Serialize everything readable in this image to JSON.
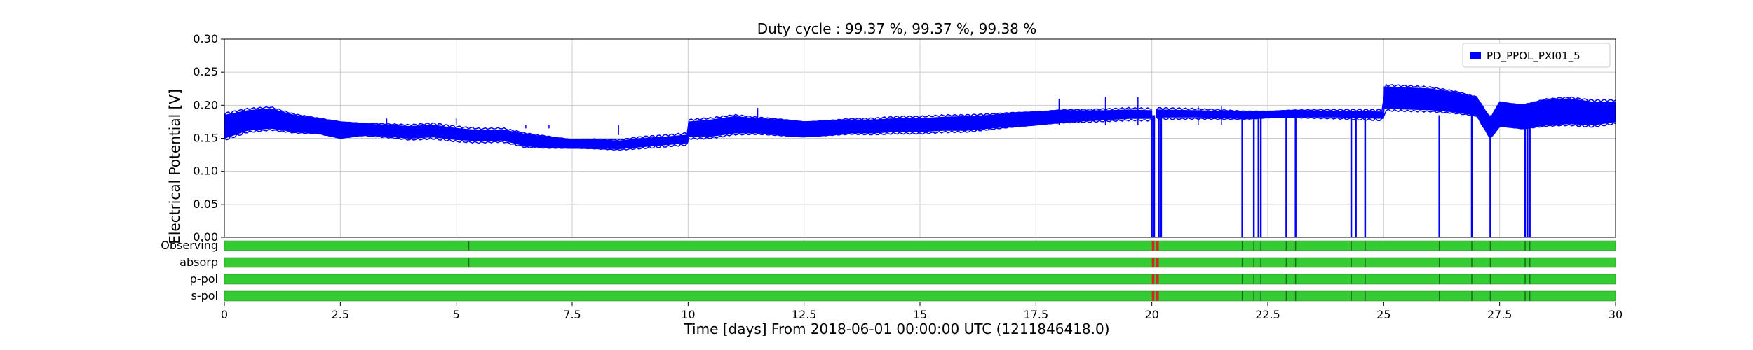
{
  "chart_data": {
    "type": "line",
    "title": "Duty cycle : 99.37 %, 99.37 %, 99.38 %",
    "xlabel": "Time [days] From 2018-06-01 00:00:00 UTC (1211846418.0)",
    "ylabel": "Electrical Potential [V]",
    "xlim": [
      0,
      30
    ],
    "ylim": [
      0,
      0.3
    ],
    "x_ticks": [
      0,
      2.5,
      5,
      7.5,
      10,
      12.5,
      15,
      17.5,
      20,
      22.5,
      25,
      27.5,
      30
    ],
    "x_tick_labels": [
      "0",
      "2.5",
      "5",
      "7.5",
      "10",
      "12.5",
      "15",
      "17.5",
      "20",
      "22.5",
      "25",
      "27.5",
      "30"
    ],
    "y_ticks": [
      0,
      0.05,
      0.1,
      0.15,
      0.2,
      0.25,
      0.3
    ],
    "y_tick_labels": [
      "0.00",
      "0.05",
      "0.10",
      "0.15",
      "0.20",
      "0.25",
      "0.30"
    ],
    "grid": true,
    "legend_position": "top-right",
    "colors": {
      "series": "#0000ff",
      "segment_active": "#33cc33",
      "segment_gap": "#d62728",
      "segment_tick": "#1a6b1a",
      "grid": "#cccccc"
    },
    "series": [
      {
        "name": "PD_PPOL_PXI01_5",
        "color": "#0000ff",
        "band_x": [
          0,
          0.5,
          1,
          1.5,
          2,
          2.5,
          3,
          3.5,
          4,
          4.5,
          5,
          5.5,
          6,
          6.5,
          7,
          7.5,
          8,
          8.5,
          9,
          9.5,
          9.99,
          10.01,
          10.5,
          11,
          11.5,
          12,
          12.5,
          13,
          13.5,
          14,
          14.5,
          15,
          15.5,
          16,
          16.5,
          17,
          17.5,
          18,
          18.5,
          19,
          19.5,
          20
        ],
        "band_low": [
          0.15,
          0.162,
          0.165,
          0.16,
          0.158,
          0.15,
          0.155,
          0.153,
          0.15,
          0.152,
          0.148,
          0.146,
          0.147,
          0.138,
          0.136,
          0.135,
          0.135,
          0.134,
          0.137,
          0.14,
          0.143,
          0.152,
          0.153,
          0.158,
          0.158,
          0.155,
          0.152,
          0.155,
          0.158,
          0.158,
          0.16,
          0.16,
          0.162,
          0.162,
          0.165,
          0.168,
          0.17,
          0.174,
          0.176,
          0.178,
          0.18,
          0.18
        ],
        "band_high": [
          0.185,
          0.192,
          0.195,
          0.185,
          0.18,
          0.175,
          0.172,
          0.17,
          0.168,
          0.17,
          0.165,
          0.162,
          0.163,
          0.156,
          0.152,
          0.148,
          0.148,
          0.146,
          0.15,
          0.152,
          0.155,
          0.175,
          0.178,
          0.183,
          0.18,
          0.178,
          0.175,
          0.176,
          0.178,
          0.178,
          0.18,
          0.18,
          0.182,
          0.183,
          0.185,
          0.188,
          0.19,
          0.192,
          0.192,
          0.192,
          0.193,
          0.192
        ],
        "band2_x": [
          20.1,
          21,
          22,
          23,
          24,
          25,
          25.01,
          26,
          26.5,
          27,
          27.3,
          27.5,
          28,
          28.5,
          29,
          29.5,
          30
        ],
        "band2_low": [
          0.182,
          0.182,
          0.18,
          0.182,
          0.182,
          0.18,
          0.195,
          0.193,
          0.19,
          0.185,
          0.15,
          0.168,
          0.165,
          0.17,
          0.172,
          0.17,
          0.175
        ],
        "band2_high": [
          0.193,
          0.192,
          0.19,
          0.192,
          0.191,
          0.19,
          0.228,
          0.225,
          0.22,
          0.212,
          0.18,
          0.205,
          0.2,
          0.208,
          0.21,
          0.205,
          0.205
        ],
        "dropouts": [
          20.0,
          20.05,
          20.15,
          20.2,
          21.95,
          22.2,
          22.3,
          22.35,
          22.9,
          23.1,
          24.3,
          24.4,
          24.6,
          26.2,
          26.9,
          27.3,
          28.05,
          28.1,
          28.15
        ],
        "spikes": [
          [
            3.5,
            0.18
          ],
          [
            5.0,
            0.18
          ],
          [
            6.5,
            0.165
          ],
          [
            7.0,
            0.165
          ],
          [
            8.5,
            0.155
          ],
          [
            11.5,
            0.196
          ],
          [
            18.0,
            0.21
          ],
          [
            19.0,
            0.212
          ],
          [
            19.7,
            0.212
          ],
          [
            21.0,
            0.198
          ],
          [
            21.5,
            0.198
          ]
        ]
      }
    ],
    "segments": {
      "rows": [
        {
          "label": "Observing",
          "ticks": [
            5.27,
            21.95,
            22.2,
            22.35,
            22.9,
            23.1,
            24.3,
            24.6,
            26.2,
            26.9,
            27.3,
            28.05,
            28.15
          ]
        },
        {
          "label": "absorp",
          "ticks": [
            5.27,
            21.95,
            22.2,
            22.35,
            22.9,
            23.1,
            24.3,
            24.6,
            26.2,
            26.9,
            27.3,
            28.05,
            28.15
          ]
        },
        {
          "label": "p-pol",
          "ticks": [
            21.95,
            22.2,
            22.35,
            22.9,
            23.1,
            24.3,
            24.6,
            26.2,
            26.9,
            27.3,
            28.05,
            28.15
          ]
        },
        {
          "label": "s-pol",
          "ticks": [
            21.95,
            22.2,
            22.35,
            22.9,
            23.1,
            24.3,
            24.6,
            26.2,
            26.9,
            27.3,
            28.05,
            28.15
          ]
        }
      ],
      "gap": [
        20.0,
        20.15
      ],
      "gap_green_tick": 20.07
    }
  }
}
